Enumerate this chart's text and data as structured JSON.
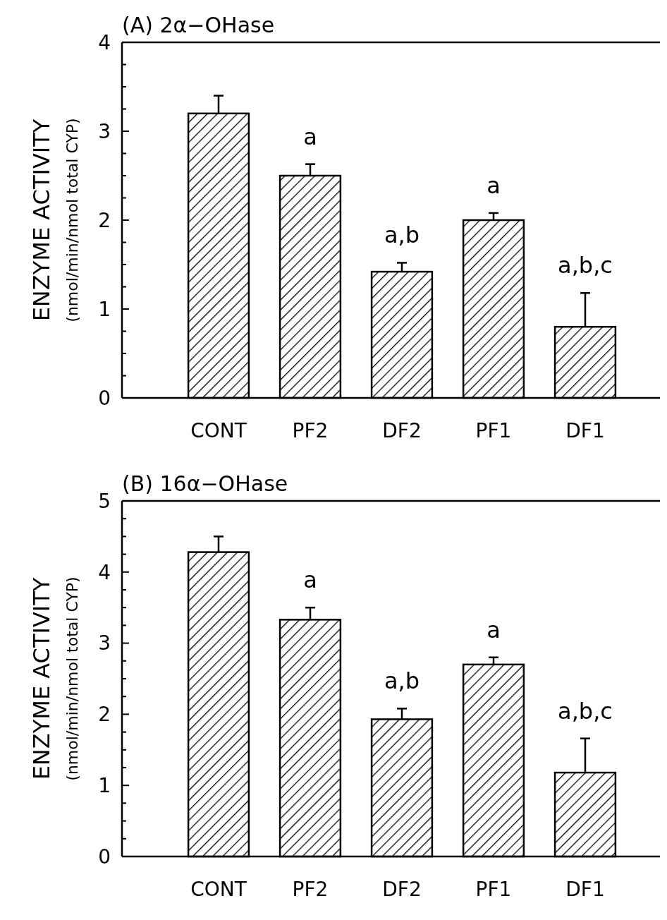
{
  "chart_data": [
    {
      "type": "bar",
      "title": "(A) 2α−OHase",
      "ylabel": "ENZYME ACTIVITY\n(nmol/min/nmol total CYP)",
      "categories": [
        "CONT",
        "PF2",
        "DF2",
        "PF1",
        "DF1"
      ],
      "series": [
        {
          "color": "#000000",
          "values": [
            3.2,
            2.5,
            1.42,
            2.0,
            0.8
          ],
          "errors": [
            0.2,
            0.13,
            0.1,
            0.08,
            0.38
          ]
        }
      ],
      "ylim": [
        0,
        4
      ],
      "yticks": [
        0,
        {
          "value": 0.25,
          "label": null
        },
        {
          "value": 0.5,
          "label": null
        },
        {
          "value": 0.75,
          "label": null
        },
        1,
        {
          "value": 1.25,
          "label": null
        },
        {
          "value": 1.5,
          "label": null
        },
        {
          "value": 1.75,
          "label": null
        },
        2,
        {
          "value": 2.25,
          "label": null
        },
        {
          "value": 2.5,
          "label": null
        },
        {
          "value": 2.75,
          "label": null
        },
        3,
        {
          "value": 3.25,
          "label": null
        },
        {
          "value": 3.5,
          "label": null
        },
        {
          "value": 3.75,
          "label": null
        },
        4
      ],
      "annotations": [
        {
          "text": "a",
          "x": "PF2",
          "y": 2.63
        },
        {
          "text": "a,b",
          "x": "DF2",
          "y": 1.52
        },
        {
          "text": "a",
          "x": "PF1",
          "y": 2.08
        },
        {
          "text": "a,b,c",
          "x": "DF1",
          "y": 1.18
        }
      ]
    },
    {
      "type": "bar",
      "title": "(B) 16α−OHase",
      "ylabel": "ENZYME ACTIVITY\n(nmol/min/nmol total CYP)",
      "categories": [
        "CONT",
        "PF2",
        "DF2",
        "PF1",
        "DF1"
      ],
      "series": [
        {
          "color": "#000000",
          "values": [
            4.28,
            3.33,
            1.93,
            2.7,
            1.18
          ],
          "errors": [
            0.22,
            0.17,
            0.15,
            0.1,
            0.48
          ]
        }
      ],
      "ylim": [
        0,
        5
      ],
      "yticks": [
        0,
        {
          "value": 0.25,
          "label": null
        },
        {
          "value": 0.5,
          "label": null
        },
        {
          "value": 0.75,
          "label": null
        },
        1,
        {
          "value": 1.25,
          "label": null
        },
        {
          "value": 1.5,
          "label": null
        },
        {
          "value": 1.75,
          "label": null
        },
        2,
        {
          "value": 2.25,
          "label": null
        },
        {
          "value": 2.5,
          "label": null
        },
        {
          "value": 2.75,
          "label": null
        },
        3,
        {
          "value": 3.25,
          "label": null
        },
        {
          "value": 3.5,
          "label": null
        },
        {
          "value": 3.75,
          "label": null
        },
        4,
        {
          "value": 4.25,
          "label": null
        },
        {
          "value": 4.5,
          "label": null
        },
        {
          "value": 4.75,
          "label": null
        },
        5
      ],
      "annotations": [
        {
          "text": "a",
          "x": "PF2",
          "y": 3.5
        },
        {
          "text": "a,b",
          "x": "DF2",
          "y": 2.08
        },
        {
          "text": "a",
          "x": "PF1",
          "y": 2.8
        },
        {
          "text": "a,b,c",
          "x": "DF1",
          "y": 1.66
        }
      ]
    }
  ]
}
